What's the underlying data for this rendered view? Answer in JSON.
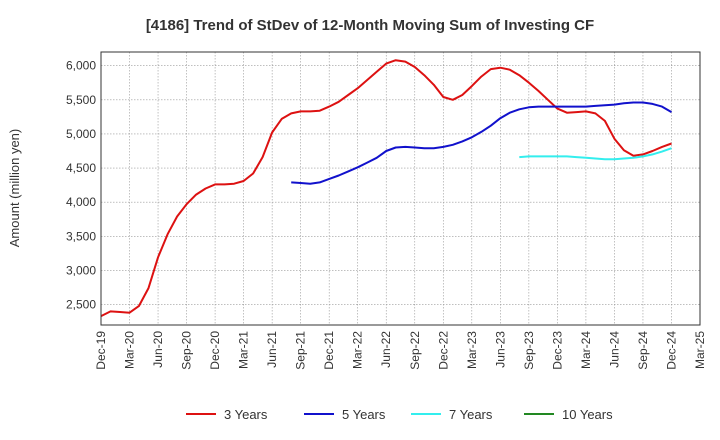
{
  "chart_data": {
    "type": "line",
    "title": "[4186]  Trend of StDev of 12-Month Moving Sum of Investing CF",
    "xlabel": "",
    "ylabel": "Amount (million yen)",
    "ylim": [
      2200,
      6200
    ],
    "y_ticks": [
      2500,
      3000,
      3500,
      4000,
      4500,
      5000,
      5500,
      6000
    ],
    "y_tick_labels": [
      "2,500",
      "3,000",
      "3,500",
      "4,000",
      "4,500",
      "5,000",
      "5,500",
      "6,000"
    ],
    "x_start": "Dec-19",
    "x_ticks": [
      "Dec-19",
      "Mar-20",
      "Jun-20",
      "Sep-20",
      "Dec-20",
      "Mar-21",
      "Jun-21",
      "Sep-21",
      "Dec-21",
      "Mar-22",
      "Jun-22",
      "Sep-22",
      "Dec-22",
      "Mar-23",
      "Jun-23",
      "Sep-23",
      "Dec-23",
      "Mar-24",
      "Jun-24",
      "Sep-24",
      "Dec-24",
      "Mar-25"
    ],
    "grid": true,
    "legend_position": "bottom",
    "series": [
      {
        "name": "3 Years",
        "color": "#dd1111",
        "values": [
          2330,
          2400,
          2390,
          2380,
          2480,
          2740,
          3190,
          3530,
          3790,
          3970,
          4110,
          4200,
          4260,
          4260,
          4270,
          4310,
          4420,
          4660,
          5020,
          5220,
          5300,
          5330,
          5330,
          5340,
          5400,
          5470,
          5570,
          5670,
          5790,
          5910,
          6030,
          6080,
          6060,
          5980,
          5860,
          5720,
          5540,
          5500,
          5570,
          5700,
          5840,
          5950,
          5970,
          5940,
          5860,
          5750,
          5630,
          5500,
          5370,
          5310,
          5320,
          5330,
          5300,
          5190,
          4930,
          4760,
          4680,
          4700,
          4750,
          4810,
          4860
        ]
      },
      {
        "name": "5 Years",
        "color": "#1111cc",
        "values": [
          null,
          null,
          null,
          null,
          null,
          null,
          null,
          null,
          null,
          null,
          null,
          null,
          null,
          null,
          null,
          null,
          null,
          null,
          null,
          null,
          4290,
          4280,
          4270,
          4290,
          4340,
          4390,
          4450,
          4510,
          4580,
          4650,
          4750,
          4800,
          4810,
          4800,
          4790,
          4790,
          4810,
          4840,
          4890,
          4950,
          5030,
          5120,
          5230,
          5310,
          5360,
          5390,
          5400,
          5400,
          5400,
          5400,
          5400,
          5400,
          5410,
          5420,
          5430,
          5450,
          5460,
          5460,
          5440,
          5400,
          5320
        ]
      },
      {
        "name": "7 Years",
        "color": "#33eeee",
        "values": [
          null,
          null,
          null,
          null,
          null,
          null,
          null,
          null,
          null,
          null,
          null,
          null,
          null,
          null,
          null,
          null,
          null,
          null,
          null,
          null,
          null,
          null,
          null,
          null,
          null,
          null,
          null,
          null,
          null,
          null,
          null,
          null,
          null,
          null,
          null,
          null,
          null,
          null,
          null,
          null,
          null,
          null,
          null,
          null,
          4660,
          4670,
          4670,
          4670,
          4670,
          4670,
          4660,
          4650,
          4640,
          4630,
          4630,
          4640,
          4650,
          4670,
          4700,
          4740,
          4790
        ]
      },
      {
        "name": "10 Years",
        "color": "#228822",
        "values": []
      }
    ]
  }
}
